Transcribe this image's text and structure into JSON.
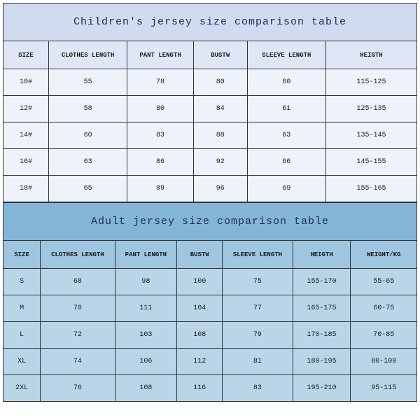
{
  "children": {
    "title": "Children's jersey size comparison table",
    "headers": [
      "SIZE",
      "CLOTHES LENGTH",
      "PANT LENGTH",
      "BUSTW",
      "SLEEVE LENGTH",
      "HEIGTH"
    ],
    "col_widths_pct": [
      11,
      19,
      16,
      13,
      19,
      22
    ],
    "rows": [
      [
        "10#",
        "55",
        "78",
        "80",
        "60",
        "115-125"
      ],
      [
        "12#",
        "58",
        "80",
        "84",
        "61",
        "125-135"
      ],
      [
        "14#",
        "60",
        "83",
        "88",
        "63",
        "135-145"
      ],
      [
        "16#",
        "63",
        "86",
        "92",
        "66",
        "145-155"
      ],
      [
        "18#",
        "65",
        "89",
        "96",
        "69",
        "155-165"
      ]
    ],
    "title_bg": "#d0dbf0",
    "head_bg": "#dfe6f5",
    "row_bg": "#eef2fa",
    "border_color": "#333333",
    "title_color": "#1a2f5a",
    "text_color": "#1a1a1a",
    "title_fontsize": 15,
    "header_fontsize": 9,
    "cell_fontsize": 10
  },
  "adult": {
    "title": "Adult jersey size comparison table",
    "headers": [
      "SIZE",
      "CLOTHES LENGTH",
      "PANT LENGTH",
      "BUSTW",
      "SLEEVE LENGTH",
      "HEIGTH",
      "WEIGHT/KG"
    ],
    "col_widths_pct": [
      9,
      18,
      15,
      11,
      17,
      14,
      16
    ],
    "rows": [
      [
        "S",
        "68",
        "98",
        "100",
        "75",
        "155-170",
        "55-65"
      ],
      [
        "M",
        "70",
        "111",
        "104",
        "77",
        "165-175",
        "60-75"
      ],
      [
        "L",
        "72",
        "103",
        "108",
        "79",
        "170-185",
        "70-85"
      ],
      [
        "XL",
        "74",
        "106",
        "112",
        "81",
        "180-195",
        "80-100"
      ],
      [
        "2XL",
        "76",
        "108",
        "116",
        "83",
        "195-210",
        "95-115"
      ]
    ],
    "title_bg": "#84b5d8",
    "head_bg": "#9ec6e0",
    "row_bg": "#b9d6e9",
    "border_color": "#333333",
    "title_color": "#1a2f5a",
    "text_color": "#1a1a1a",
    "title_fontsize": 15,
    "header_fontsize": 9,
    "cell_fontsize": 10
  }
}
